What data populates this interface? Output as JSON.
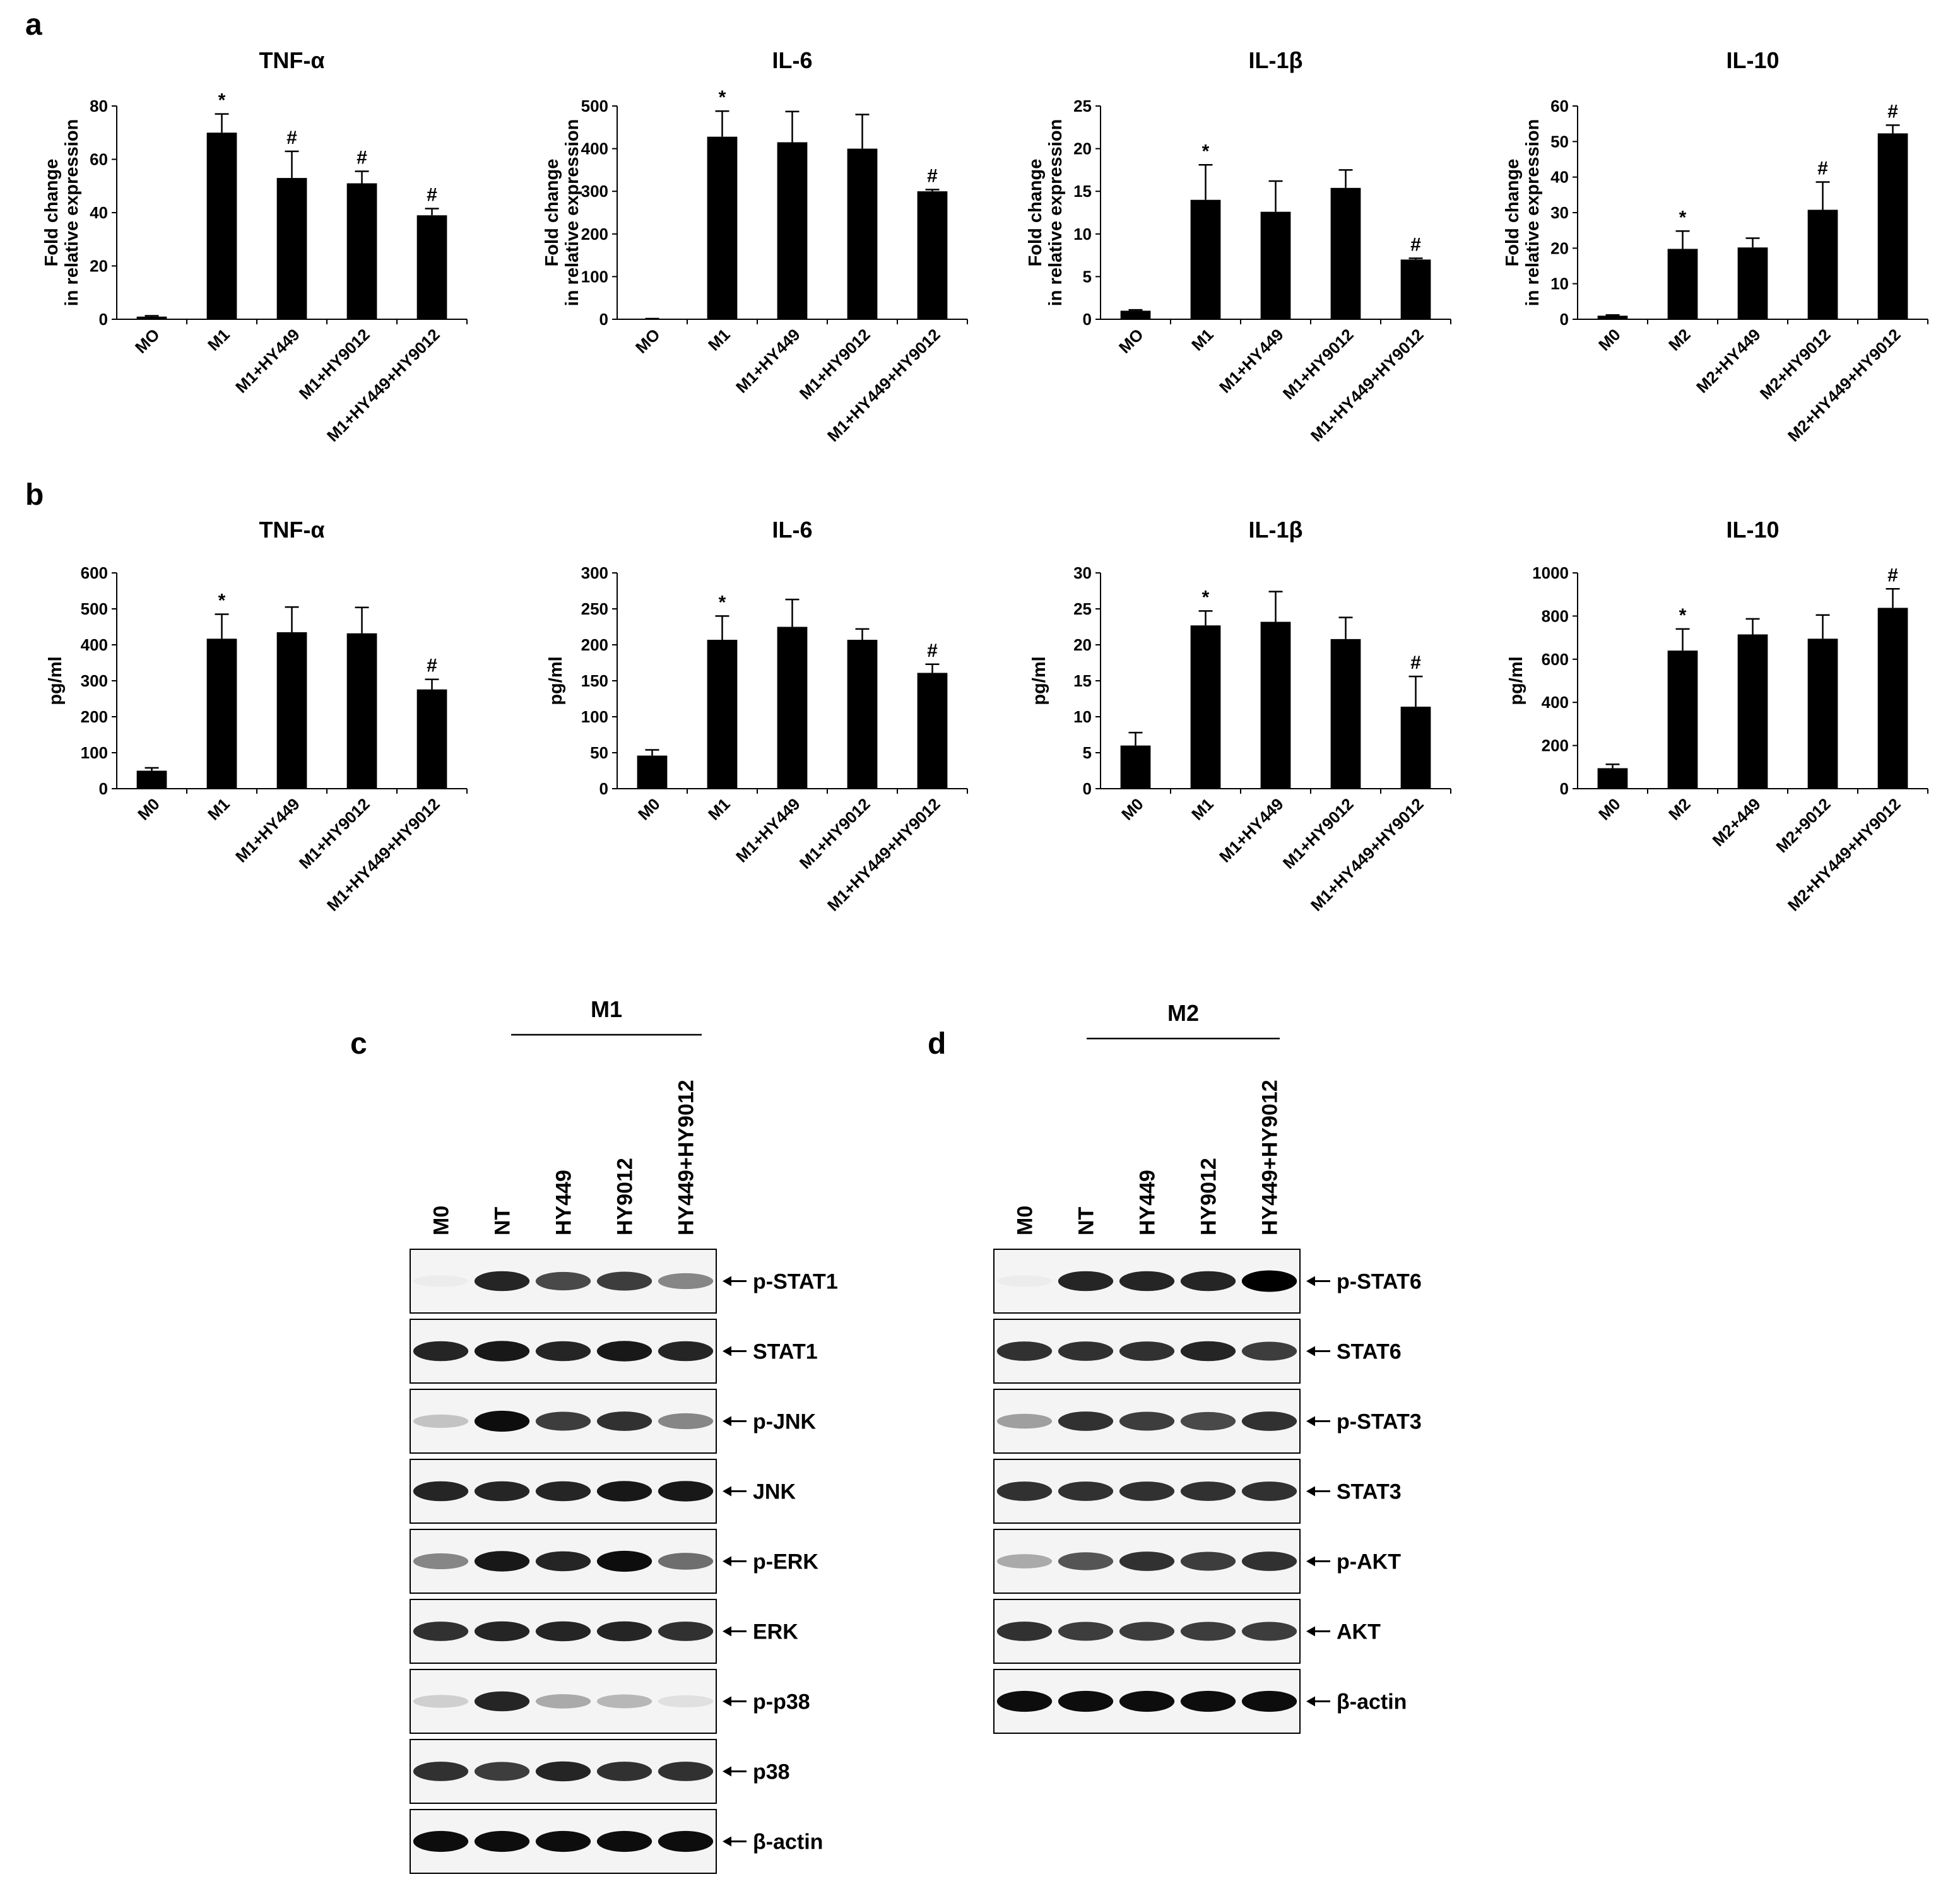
{
  "panels": {
    "a": "a",
    "b": "b",
    "c": "c",
    "d": "d"
  },
  "chart_data": [
    {
      "panel": "a",
      "type": "bar",
      "title": "TNF-α",
      "ylabel": [
        "Fold change",
        "in relative expression"
      ],
      "categories": [
        "MO",
        "M1",
        "M1+HY449",
        "M1+HY9012",
        "M1+HY449+HY9012"
      ],
      "values": [
        1,
        70,
        53,
        51,
        39
      ],
      "errors": [
        0.3,
        7,
        10,
        4.5,
        2.5
      ],
      "marks": [
        "",
        "*",
        "#",
        "#",
        "#"
      ],
      "ylim": [
        0,
        80
      ],
      "yticks": [
        0,
        20,
        40,
        60,
        80
      ]
    },
    {
      "panel": "a",
      "type": "bar",
      "title": "IL-6",
      "ylabel": [
        "Fold change",
        "in relative expression"
      ],
      "categories": [
        "MO",
        "M1",
        "M1+HY449",
        "M1+HY9012",
        "M1+HY449+HY9012"
      ],
      "values": [
        1,
        428,
        415,
        400,
        300
      ],
      "errors": [
        0.5,
        60,
        72,
        80,
        4
      ],
      "marks": [
        "",
        "*",
        "",
        "",
        "#"
      ],
      "ylim": [
        0,
        500
      ],
      "yticks": [
        0,
        100,
        200,
        300,
        400,
        500
      ]
    },
    {
      "panel": "a",
      "type": "bar",
      "title": "IL-1β",
      "ylabel": [
        "Fold change",
        "in relative expression"
      ],
      "categories": [
        "MO",
        "M1",
        "M1+HY449",
        "M1+HY9012",
        "M1+HY449+HY9012"
      ],
      "values": [
        1,
        14,
        12.6,
        15.4,
        7
      ],
      "errors": [
        0.1,
        4.1,
        3.6,
        2.1,
        0.15
      ],
      "marks": [
        "",
        "*",
        "",
        "",
        "#"
      ],
      "ylim": [
        0,
        25
      ],
      "yticks": [
        0,
        5,
        10,
        15,
        20,
        25
      ]
    },
    {
      "panel": "a",
      "type": "bar",
      "title": "IL-10",
      "ylabel": [
        "Fold change",
        "in relative expression"
      ],
      "categories": [
        "M0",
        "M2",
        "M2+HY449",
        "M2+HY9012",
        "M2+HY449+HY9012"
      ],
      "values": [
        1,
        19.8,
        20.2,
        30.8,
        52.3
      ],
      "errors": [
        0.2,
        5,
        2.6,
        7.8,
        2.3
      ],
      "marks": [
        "",
        "*",
        "",
        "#",
        "#"
      ],
      "ylim": [
        0,
        60
      ],
      "yticks": [
        0,
        10,
        20,
        30,
        40,
        50,
        60
      ]
    },
    {
      "panel": "b",
      "type": "bar",
      "title": "TNF-α",
      "ylabel": [
        "pg/ml"
      ],
      "categories": [
        "M0",
        "M1",
        "M1+HY449",
        "M1+HY9012",
        "M1+HY449+HY9012"
      ],
      "values": [
        50,
        417,
        435,
        432,
        276
      ],
      "errors": [
        8,
        68,
        70,
        72,
        28
      ],
      "marks": [
        "",
        "*",
        "",
        "",
        "#"
      ],
      "ylim": [
        0,
        600
      ],
      "yticks": [
        0,
        100,
        200,
        300,
        400,
        500,
        600
      ]
    },
    {
      "panel": "b",
      "type": "bar",
      "title": "IL-6",
      "ylabel": [
        "pg/ml"
      ],
      "categories": [
        "M0",
        "M1",
        "M1+HY449",
        "M1+HY9012",
        "M1+HY449+HY9012"
      ],
      "values": [
        46,
        207,
        225,
        207,
        161
      ],
      "errors": [
        8,
        33,
        38,
        15,
        12
      ],
      "marks": [
        "",
        "*",
        "",
        "",
        "#"
      ],
      "ylim": [
        0,
        300
      ],
      "yticks": [
        0,
        50,
        100,
        150,
        200,
        250,
        300
      ]
    },
    {
      "panel": "b",
      "type": "bar",
      "title": "IL-1β",
      "ylabel": [
        "pg/ml"
      ],
      "categories": [
        "M0",
        "M1",
        "M1+HY449",
        "M1+HY9012",
        "M1+HY449+HY9012"
      ],
      "values": [
        6,
        22.7,
        23.2,
        20.8,
        11.4
      ],
      "errors": [
        1.8,
        2,
        4.2,
        3,
        4.2
      ],
      "marks": [
        "",
        "*",
        "",
        "",
        "#"
      ],
      "ylim": [
        0,
        30
      ],
      "yticks": [
        0,
        5,
        10,
        15,
        20,
        25,
        30
      ]
    },
    {
      "panel": "b",
      "type": "bar",
      "title": "IL-10",
      "ylabel": [
        "pg/ml"
      ],
      "categories": [
        "M0",
        "M2",
        "M2+449",
        "M2+9012",
        "M2+HY449+HY9012"
      ],
      "values": [
        95,
        640,
        715,
        695,
        838
      ],
      "errors": [
        18,
        100,
        72,
        110,
        88
      ],
      "marks": [
        "",
        "*",
        "",
        "",
        "#"
      ],
      "ylim": [
        0,
        1000
      ],
      "yticks": [
        0,
        200,
        400,
        600,
        800,
        1000
      ]
    }
  ],
  "western": [
    {
      "panel": "c",
      "group": "M1",
      "lanes": [
        "M0",
        "NT",
        "HY449",
        "HY9012",
        "HY449+HY9012"
      ],
      "rows": [
        {
          "label": "p-STAT1",
          "bands": [
            0.02,
            0.85,
            0.7,
            0.75,
            0.45
          ]
        },
        {
          "label": "STAT1",
          "bands": [
            0.85,
            0.9,
            0.85,
            0.9,
            0.85
          ]
        },
        {
          "label": "p-JNK",
          "bands": [
            0.2,
            0.95,
            0.75,
            0.8,
            0.45
          ]
        },
        {
          "label": "JNK",
          "bands": [
            0.85,
            0.85,
            0.85,
            0.9,
            0.9
          ]
        },
        {
          "label": "p-ERK",
          "bands": [
            0.45,
            0.9,
            0.85,
            0.95,
            0.55
          ]
        },
        {
          "label": "ERK",
          "bands": [
            0.8,
            0.85,
            0.85,
            0.85,
            0.8
          ]
        },
        {
          "label": "p-p38",
          "bands": [
            0.15,
            0.85,
            0.3,
            0.25,
            0.08
          ]
        },
        {
          "label": "p38",
          "bands": [
            0.8,
            0.75,
            0.85,
            0.8,
            0.8
          ]
        },
        {
          "label": "β-actin",
          "bands": [
            0.95,
            0.95,
            0.95,
            0.95,
            0.95
          ]
        }
      ]
    },
    {
      "panel": "d",
      "group": "M2",
      "lanes": [
        "M0",
        "NT",
        "HY449",
        "HY9012",
        "HY449+HY9012"
      ],
      "rows": [
        {
          "label": "p-STAT6",
          "bands": [
            0.02,
            0.85,
            0.85,
            0.85,
            1.0
          ]
        },
        {
          "label": "STAT6",
          "bands": [
            0.8,
            0.8,
            0.8,
            0.85,
            0.75
          ]
        },
        {
          "label": "p-STAT3",
          "bands": [
            0.35,
            0.8,
            0.75,
            0.7,
            0.8
          ]
        },
        {
          "label": "STAT3",
          "bands": [
            0.8,
            0.8,
            0.8,
            0.8,
            0.8
          ]
        },
        {
          "label": "p-AKT",
          "bands": [
            0.3,
            0.65,
            0.8,
            0.75,
            0.8
          ]
        },
        {
          "label": "AKT",
          "bands": [
            0.8,
            0.75,
            0.75,
            0.75,
            0.75
          ]
        },
        {
          "label": "β-actin",
          "bands": [
            0.95,
            0.95,
            0.95,
            0.95,
            0.95
          ]
        }
      ]
    }
  ]
}
